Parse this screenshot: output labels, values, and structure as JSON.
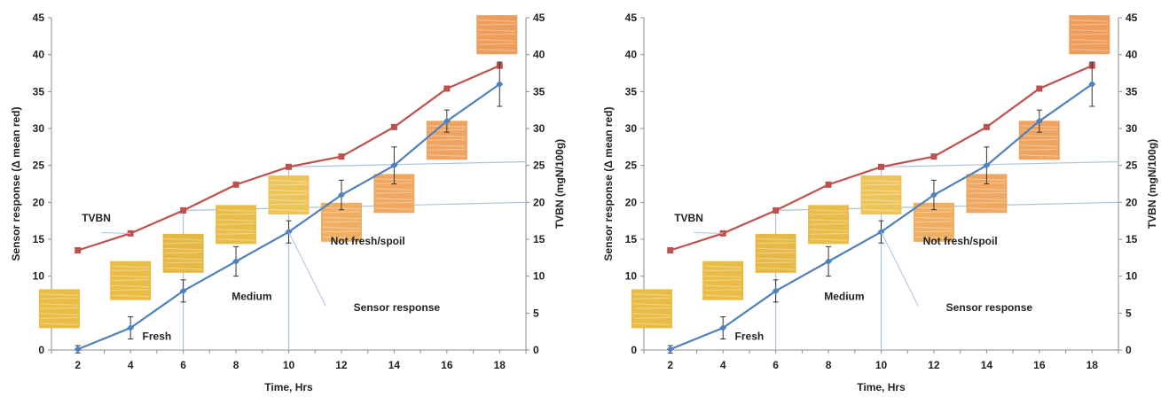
{
  "chart_data": [
    {
      "type": "line",
      "xlabel": "Time, Hrs",
      "ylabel_left": "Sensor response (Δ mean red)",
      "ylabel_right": "TVBN (mgN/100g)",
      "x": [
        2,
        4,
        6,
        8,
        10,
        12,
        14,
        16,
        18
      ],
      "ylim_left": [
        0,
        45
      ],
      "ylim_right": [
        0,
        45
      ],
      "yticks": [
        0,
        5,
        10,
        15,
        20,
        25,
        30,
        35,
        40,
        45
      ],
      "grid": false,
      "series": [
        {
          "name": "TVBN",
          "axis": "right",
          "color": "#C0504D",
          "marker": "square",
          "values": [
            13.5,
            15.8,
            18.9,
            22.4,
            24.8,
            26.2,
            30.2,
            35.4,
            38.5
          ]
        },
        {
          "name": "Sensor response",
          "axis": "left",
          "color": "#4F81BD",
          "marker": "diamond",
          "values": [
            0.1,
            3.0,
            8.0,
            12.0,
            16.0,
            21.0,
            25.0,
            31.0,
            36.0
          ],
          "error": [
            0.5,
            1.5,
            1.5,
            2.0,
            1.5,
            2.0,
            2.5,
            1.5,
            3.0
          ]
        }
      ],
      "annotations": [
        "TVBN",
        "Fresh",
        "Medium",
        "Not fresh/spoil",
        "Sensor response"
      ],
      "threshold_levels": [
        20,
        25.5
      ],
      "sample_image_colors": [
        "#E8BC45",
        "#E8BC45",
        "#E6B845",
        "#E8BC48",
        "#EDC45A",
        "#EFAE62",
        "#EFA862",
        "#EEA460",
        "#EE9C5A"
      ]
    },
    {
      "type": "line",
      "xlabel": "Time, Hrs",
      "ylabel_left": "Sensor response (Δ mean red)",
      "ylabel_right": "TVBN (mgN/100g)",
      "x": [
        2,
        4,
        6,
        8,
        10,
        12,
        14,
        16,
        18
      ],
      "ylim_left": [
        0,
        45
      ],
      "ylim_right": [
        0,
        45
      ],
      "yticks": [
        0,
        5,
        10,
        15,
        20,
        25,
        30,
        35,
        40,
        45
      ],
      "grid": false,
      "series": [
        {
          "name": "TVBN",
          "axis": "right",
          "color": "#C0504D",
          "marker": "square",
          "values": [
            13.5,
            15.8,
            18.9,
            22.4,
            24.8,
            26.2,
            30.2,
            35.4,
            38.5
          ]
        },
        {
          "name": "Sensor response",
          "axis": "left",
          "color": "#4F81BD",
          "marker": "diamond",
          "values": [
            0.1,
            3.0,
            8.0,
            12.0,
            16.0,
            21.0,
            25.0,
            31.0,
            36.0
          ],
          "error": [
            0.5,
            1.5,
            1.5,
            2.0,
            1.5,
            2.0,
            2.5,
            1.5,
            3.0
          ]
        }
      ],
      "annotations": [
        "TVBN",
        "Fresh",
        "Medium",
        "Not fresh/spoil",
        "Sensor response"
      ],
      "threshold_levels": [
        20,
        25.5
      ],
      "sample_image_colors": [
        "#E8BC45",
        "#E8BC45",
        "#E6B845",
        "#E8BC48",
        "#EDC45A",
        "#EFAE62",
        "#EFA862",
        "#EEA460",
        "#EE9C5A"
      ]
    }
  ]
}
